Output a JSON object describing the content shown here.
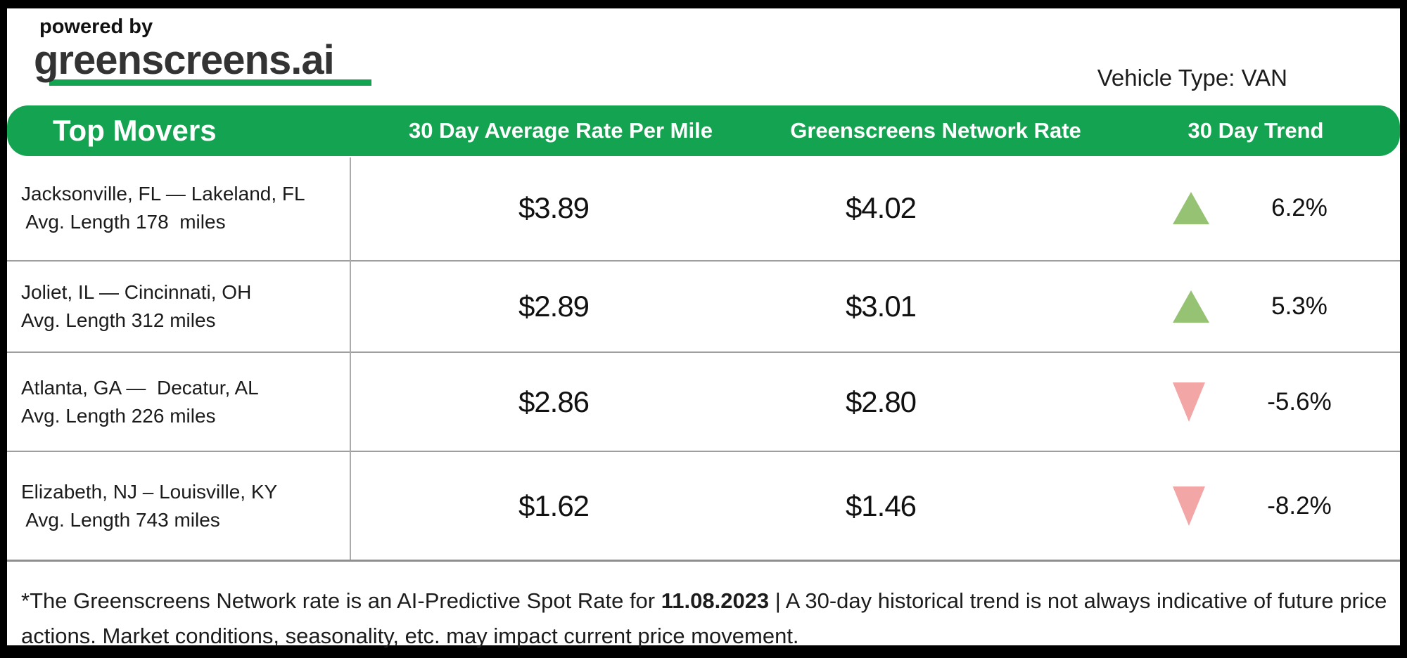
{
  "header": {
    "powered_by": "powered by",
    "brand": "greenscreens.ai",
    "vehicle_type_label": "Vehicle Type: VAN"
  },
  "table": {
    "title": "Top Movers",
    "columns": {
      "avg_rate": "30 Day Average Rate Per Mile",
      "network_rate": "Greenscreens Network Rate",
      "trend": "30 Day Trend"
    },
    "rows": [
      {
        "route": "Jacksonville, FL — Lakeland, FL",
        "avg_length": " Avg. Length 178  miles",
        "avg_rate": "$3.89",
        "network_rate": "$4.02",
        "trend_direction": "up",
        "trend_value": "6.2%"
      },
      {
        "route": "Joliet, IL — Cincinnati, OH",
        "avg_length": "Avg. Length 312 miles",
        "avg_rate": "$2.89",
        "network_rate": "$3.01",
        "trend_direction": "up",
        "trend_value": "5.3%"
      },
      {
        "route": "Atlanta, GA —  Decatur, AL",
        "avg_length": "Avg. Length 226 miles",
        "avg_rate": "$2.86",
        "network_rate": "$2.80",
        "trend_direction": "down",
        "trend_value": "-5.6%"
      },
      {
        "route": "Elizabeth, NJ – Louisville, KY",
        "avg_length": " Avg. Length 743 miles",
        "avg_rate": "$1.62",
        "network_rate": "$1.46",
        "trend_direction": "down",
        "trend_value": "-8.2%"
      }
    ]
  },
  "footer": {
    "disclaimer_prefix": "*The Greenscreens Network rate is an AI-Predictive Spot Rate for ",
    "disclaimer_date": "11.08.2023",
    "disclaimer_suffix": " | A 30-day historical trend is not always indicative of future price actions. Market conditions, seasonality, etc. may impact current price movement."
  },
  "colors": {
    "brand_green": "#14A351",
    "trend_up": "#96C373",
    "trend_down": "#F3A6A6"
  }
}
